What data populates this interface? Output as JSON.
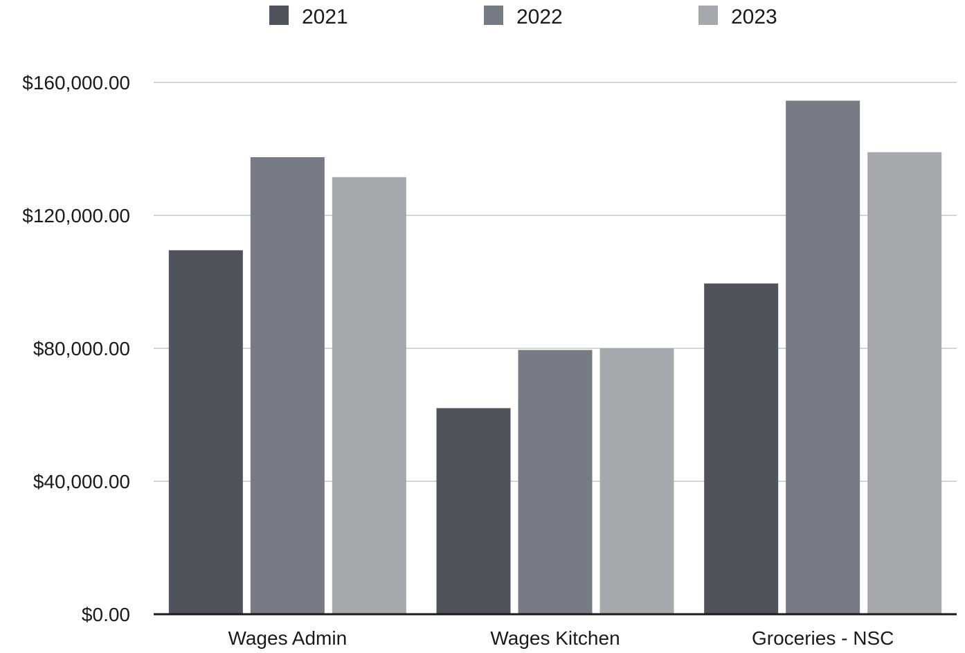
{
  "chart_data": {
    "type": "bar",
    "title": "",
    "xlabel": "",
    "ylabel": "",
    "categories": [
      "Wages Admin",
      "Wages Kitchen",
      "Groceries - NSC"
    ],
    "series": [
      {
        "name": "2021",
        "color": "#4f535c",
        "values": [
          109500,
          62000,
          99500
        ]
      },
      {
        "name": "2022",
        "color": "#767b85",
        "values": [
          137500,
          79500,
          154500
        ]
      },
      {
        "name": "2023",
        "color": "#a5a9ae",
        "values": [
          131500,
          80000,
          139000
        ]
      }
    ],
    "ylim": [
      0,
      160000
    ],
    "yticks": [
      0,
      40000,
      80000,
      120000,
      160000
    ],
    "ytick_labels": [
      "$0.00",
      "$40,000.00",
      "$80,000.00",
      "$120,000.00",
      "$160,000.00"
    ],
    "grid": true,
    "legend_position": "top-center",
    "gridline_color": "#d4d4d4",
    "axis_color": "#1a1a1a"
  }
}
